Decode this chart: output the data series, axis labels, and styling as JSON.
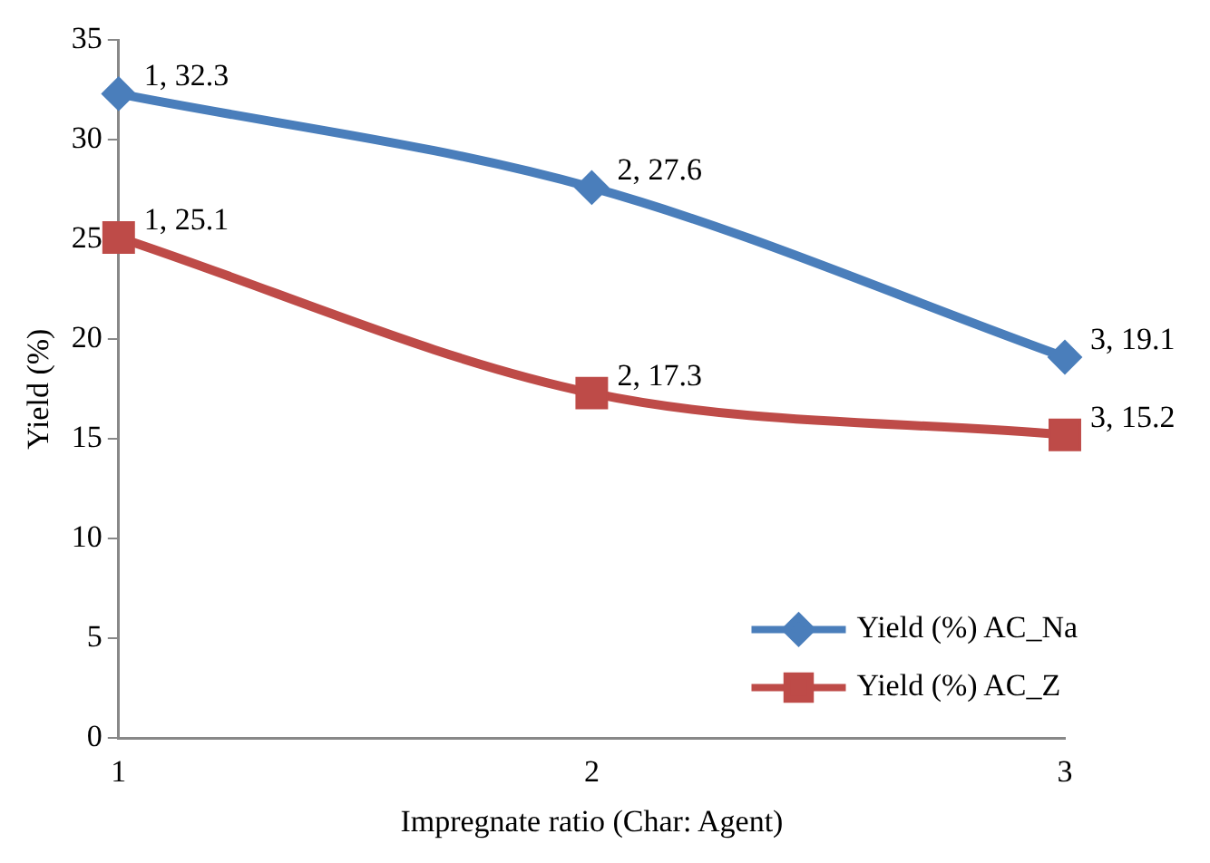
{
  "chart_data": {
    "type": "line",
    "xlabel": "Impregnate ratio (Char: Agent)",
    "ylabel": "Yield (%)",
    "x": [
      1,
      2,
      3
    ],
    "xlim": [
      1,
      3
    ],
    "xticks": [
      1,
      2,
      3
    ],
    "ylim": [
      0,
      35
    ],
    "yticks": [
      0,
      5,
      10,
      15,
      20,
      25,
      30,
      35
    ],
    "grid": false,
    "legend": "bottom right",
    "series": [
      {
        "name": "Yield (%) AC_Na",
        "color": "#4a7ebb",
        "marker": "diamond",
        "values": [
          32.3,
          27.6,
          19.1
        ],
        "value_labels": [
          "1, 32.3",
          "2, 27.6",
          "3, 19.1"
        ]
      },
      {
        "name": "Yield (%) AC_Z",
        "color": "#be4b48",
        "marker": "square",
        "values": [
          25.1,
          17.3,
          15.2
        ],
        "value_labels": [
          "1, 25.1",
          "2, 17.3",
          "3, 15.2"
        ]
      }
    ]
  }
}
